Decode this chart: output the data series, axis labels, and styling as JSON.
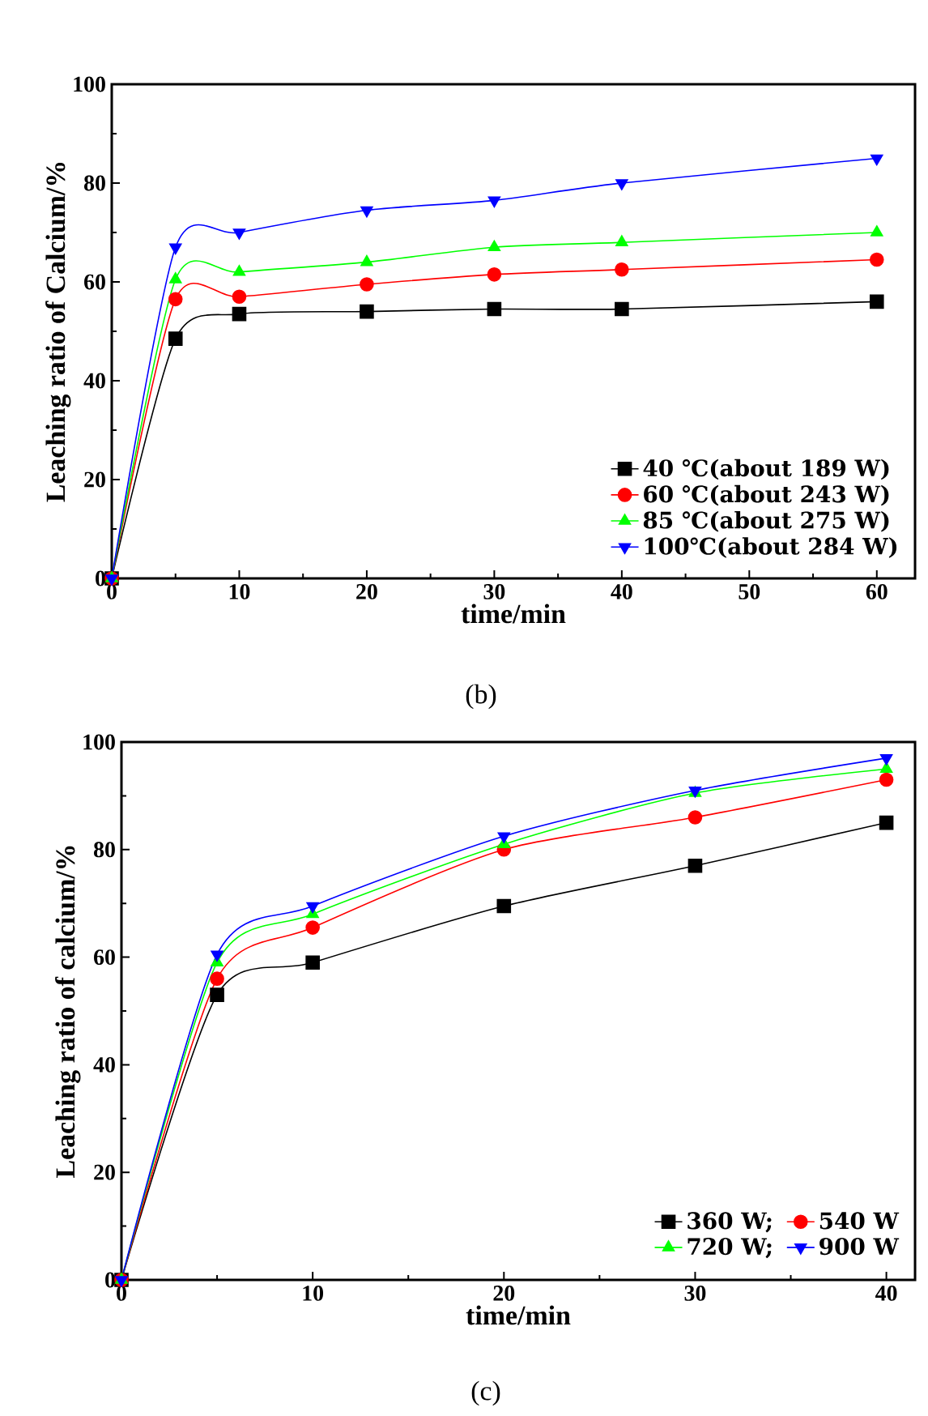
{
  "chart_data": [
    {
      "type": "line",
      "xlabel": "time/min",
      "ylabel": "Leaching ratio of Calcium/%",
      "annotations": [
        "(b)"
      ],
      "x": [
        0,
        5,
        10,
        20,
        30,
        40,
        60
      ],
      "xlim": [
        0,
        63
      ],
      "ylim": [
        0,
        100
      ],
      "xticks": [
        0,
        10,
        20,
        30,
        40,
        50,
        60
      ],
      "yticks": [
        0,
        20,
        40,
        60,
        80,
        100
      ],
      "legend": "bottom right",
      "series": [
        {
          "name": "40 ℃(about 189 W)",
          "color": "#000000",
          "marker": "square",
          "values": [
            0,
            48.5,
            53.5,
            54,
            54.5,
            54.5,
            56
          ]
        },
        {
          "name": "60 ℃(about 243 W)",
          "color": "#ff0000",
          "marker": "circle",
          "values": [
            0,
            56.5,
            57,
            59.5,
            61.5,
            62.5,
            64.5
          ]
        },
        {
          "name": "85 ℃(about 275 W)",
          "color": "#00ff00",
          "marker": "triangle",
          "values": [
            0,
            60.5,
            62,
            64,
            67,
            68,
            70
          ]
        },
        {
          "name": "100℃(about 284 W)",
          "color": "#0000ff",
          "marker": "triangle-down",
          "values": [
            0,
            67,
            70,
            74.5,
            76.5,
            80,
            85
          ]
        }
      ]
    },
    {
      "type": "line",
      "xlabel": "time/min",
      "ylabel": "Leaching ratio of calcium/%",
      "annotations": [
        "(c)"
      ],
      "x": [
        0,
        5,
        10,
        20,
        30,
        40
      ],
      "xlim": [
        0,
        41.5
      ],
      "ylim": [
        0,
        100
      ],
      "xticks": [
        0,
        10,
        20,
        30,
        40
      ],
      "yticks": [
        0,
        20,
        40,
        60,
        80,
        100
      ],
      "legend": "bottom right",
      "series": [
        {
          "name": "360 W;",
          "color": "#000000",
          "marker": "square",
          "values": [
            0,
            53,
            59,
            69.5,
            77,
            85
          ]
        },
        {
          "name": "540 W",
          "color": "#ff0000",
          "marker": "circle",
          "values": [
            0,
            56,
            65.5,
            80,
            86,
            93
          ]
        },
        {
          "name": "720 W;",
          "color": "#00ff00",
          "marker": "triangle",
          "values": [
            0,
            59,
            68,
            81,
            90.5,
            95
          ]
        },
        {
          "name": "900 W",
          "color": "#0000ff",
          "marker": "triangle-down",
          "values": [
            0,
            60.5,
            69.5,
            82.5,
            91,
            97
          ]
        }
      ]
    }
  ]
}
